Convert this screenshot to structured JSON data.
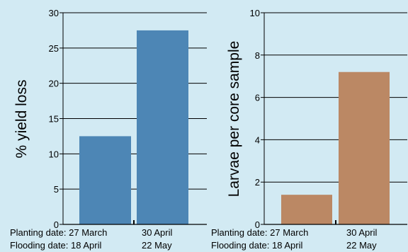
{
  "chart_data": [
    {
      "type": "bar",
      "categories": [
        "27 March / 18 April",
        "30 April / 22 May"
      ],
      "values": [
        12.5,
        27.5
      ],
      "ylabel": "% yield loss",
      "ylim": [
        0,
        30
      ],
      "yticks": [
        0,
        5,
        10,
        15,
        20,
        25,
        30
      ],
      "grid": true,
      "bar_color": "#4d86b5"
    },
    {
      "type": "bar",
      "categories": [
        "27 March / 18 April",
        "30 April / 22 May"
      ],
      "values": [
        1.4,
        7.2
      ],
      "ylabel": "Larvae per core sample",
      "ylim": [
        0,
        10
      ],
      "yticks": [
        0,
        2,
        4,
        6,
        8,
        10
      ],
      "grid": true,
      "bar_color": "#bb8864"
    }
  ],
  "captions": [
    {
      "planting_label": "Planting date:",
      "flooding_label": "Flooding date:",
      "planting_dates": [
        "27 March",
        "30 April"
      ],
      "flooding_dates": [
        "18 April",
        "22 May"
      ]
    },
    {
      "planting_label": "Planting date:",
      "flooding_label": "Flooding date:",
      "planting_dates": [
        "27 March",
        "30 April"
      ],
      "flooding_dates": [
        "18 April",
        "22 May"
      ]
    }
  ],
  "colors": {
    "background": "#d2eaf3",
    "axis": "#000000"
  }
}
